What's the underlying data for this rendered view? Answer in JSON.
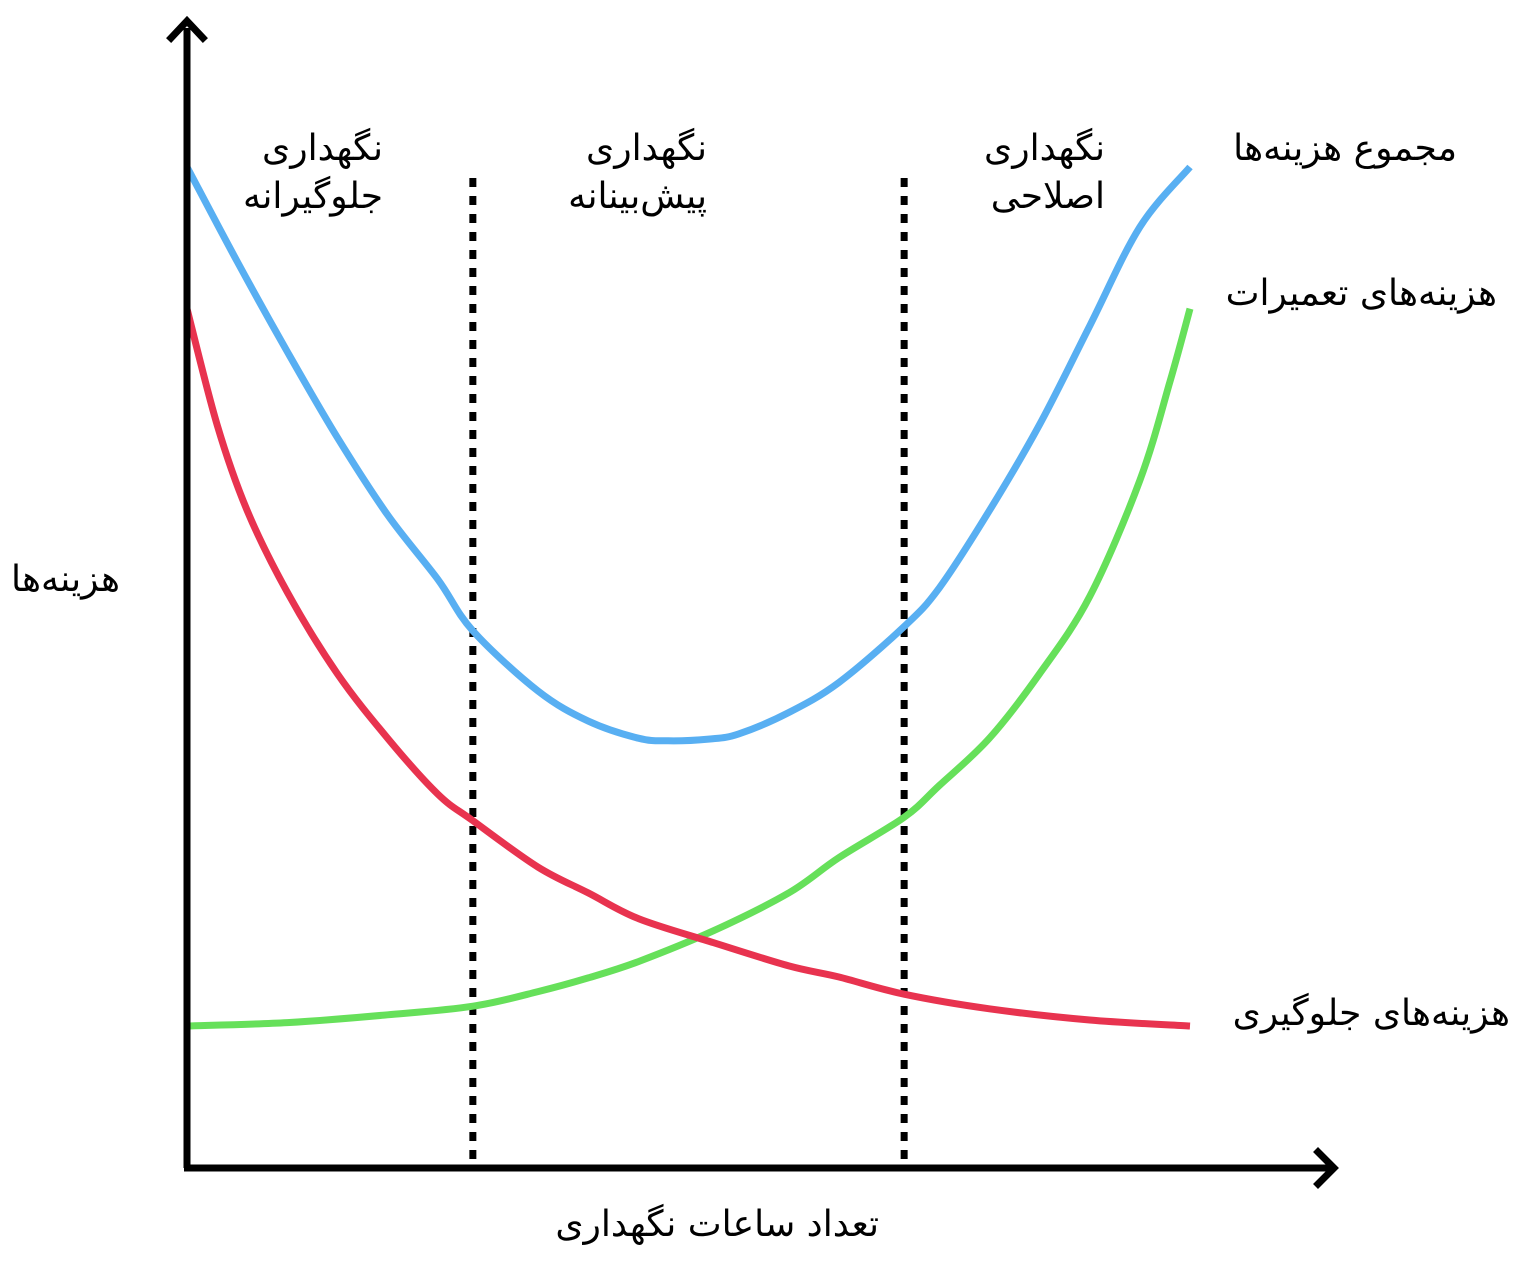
{
  "chart_data": {
    "type": "line",
    "title": "",
    "xlabel": "تعداد ساعات نگهداری",
    "ylabel": "هزینه‌ها",
    "x_ticks": "none",
    "y_ticks": "none",
    "grid": false,
    "xlim": [
      0,
      100
    ],
    "ylim": [
      0,
      100
    ],
    "regions": [
      {
        "lines": [
          "نگهداری",
          "جلوگیرانه"
        ],
        "x_range": [
          0,
          28.5
        ]
      },
      {
        "lines": [
          "نگهداری",
          "پیش‌بینانه"
        ],
        "x_range": [
          28.5,
          71.5
        ]
      },
      {
        "lines": [
          "نگهداری",
          "اصلاحی"
        ],
        "x_range": [
          71.5,
          100
        ]
      }
    ],
    "boundaries": [
      28.5,
      71.5
    ],
    "series": [
      {
        "name": "مجموع هزینه‌ها",
        "color": "#58aff2",
        "x": [
          0,
          5,
          10,
          15,
          20,
          25,
          28.5,
          35,
          40,
          45,
          48,
          52,
          55,
          60,
          65,
          71.5,
          75,
          80,
          85,
          90,
          95,
          100
        ],
        "y": [
          100,
          89,
          78.5,
          68.5,
          59.5,
          52,
          46,
          39,
          35.5,
          33.5,
          33.2,
          33.4,
          34,
          36.5,
          40,
          46.5,
          51,
          60,
          70,
          81.5,
          93,
          100
        ]
      },
      {
        "name": "هزینه‌های تعمیرات",
        "color": "#66e05a",
        "x": [
          0,
          10,
          20,
          28.5,
          35,
          40,
          45,
          52.5,
          60,
          65,
          71.5,
          75,
          80,
          85,
          90,
          95,
          98,
          100
        ],
        "y": [
          0,
          0.4,
          1.3,
          2.3,
          4,
          5.6,
          7.5,
          11.1,
          15.5,
          19.6,
          24.3,
          28,
          33.5,
          41,
          50,
          63.5,
          75,
          83.5
        ]
      },
      {
        "name": "هزینه‌های جلوگیری",
        "color": "#e8334f",
        "x": [
          0,
          3,
          6,
          10,
          15,
          20,
          25,
          28.5,
          35,
          40,
          45,
          52.5,
          60,
          65,
          71.5,
          80,
          90,
          100
        ],
        "y": [
          83.5,
          70,
          60,
          50.5,
          41,
          33.5,
          27,
          23.9,
          18.5,
          15.5,
          12.5,
          9.7,
          7,
          5.7,
          3.7,
          2,
          0.7,
          0
        ]
      }
    ]
  }
}
